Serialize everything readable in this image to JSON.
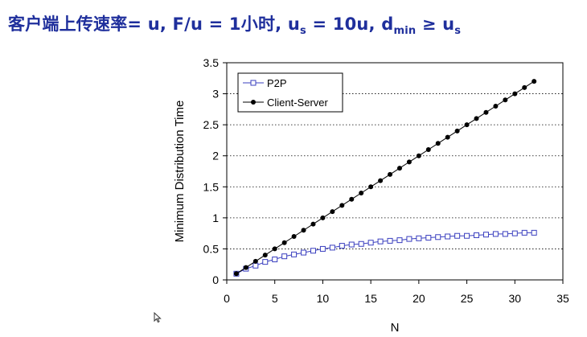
{
  "slide": {
    "title_prefix": "客户端上传速率= u,  F/u = 1小时,  u",
    "title_s1": "s",
    "title_mid": " = 10u,  d",
    "title_min": "min",
    "title_geq": " ≥ u",
    "title_s2": "s"
  },
  "cursor": {
    "icon": "mouse-pointer-icon"
  },
  "chart_data": {
    "type": "line",
    "xlabel": "N",
    "ylabel": "Minimum Distribution Time",
    "xlim": [
      0,
      35
    ],
    "ylim": [
      0,
      3.5
    ],
    "xticks": [
      "0",
      "5",
      "10",
      "15",
      "20",
      "25",
      "30",
      "35"
    ],
    "yticks": [
      "0",
      "0.5",
      "1",
      "1.5",
      "2",
      "2.5",
      "3",
      "3.5"
    ],
    "grid": "horizontal dotted",
    "legend_position": "top-left",
    "x": [
      1,
      2,
      3,
      4,
      5,
      6,
      7,
      8,
      9,
      10,
      11,
      12,
      13,
      14,
      15,
      16,
      17,
      18,
      19,
      20,
      21,
      22,
      23,
      24,
      25,
      26,
      27,
      28,
      29,
      30,
      31,
      32
    ],
    "series": [
      {
        "name": "P2P",
        "marker": "open-square",
        "color": "#3a3fbf",
        "values": [
          0.1,
          0.18,
          0.23,
          0.29,
          0.33,
          0.38,
          0.41,
          0.44,
          0.47,
          0.5,
          0.52,
          0.55,
          0.57,
          0.58,
          0.6,
          0.62,
          0.63,
          0.64,
          0.66,
          0.67,
          0.68,
          0.69,
          0.7,
          0.71,
          0.71,
          0.72,
          0.73,
          0.74,
          0.74,
          0.75,
          0.76,
          0.76
        ]
      },
      {
        "name": "Client-Server",
        "marker": "filled-circle",
        "color": "#000000",
        "values": [
          0.1,
          0.2,
          0.3,
          0.4,
          0.5,
          0.6,
          0.7,
          0.8,
          0.9,
          1.0,
          1.1,
          1.2,
          1.3,
          1.4,
          1.5,
          1.6,
          1.7,
          1.8,
          1.9,
          2.0,
          2.1,
          2.2,
          2.3,
          2.4,
          2.5,
          2.6,
          2.7,
          2.8,
          2.9,
          3.0,
          3.1,
          3.2
        ]
      }
    ]
  }
}
